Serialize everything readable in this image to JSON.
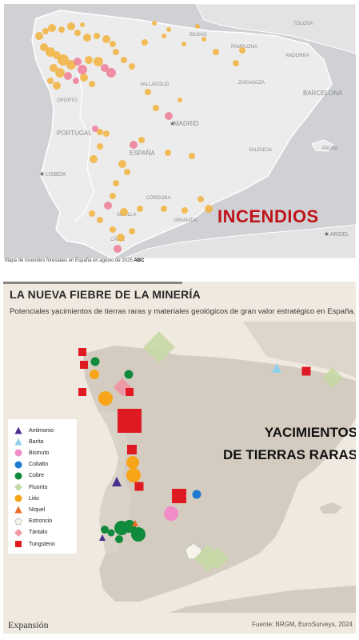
{
  "top_map": {
    "cities": {
      "tolosa": "TOLOSA",
      "bilbao": "BILBAO",
      "pamplona": "PAMPLONA",
      "andorra": "ANDORRA",
      "zaragoza": "ZARAGOZA",
      "barcelona": "BARCELONA",
      "valladolid": "VALLADOLID",
      "oporto": "OPORTO",
      "portugal": "PORTUGAL",
      "madrid": "MADRID",
      "espana": "ESPAÑA",
      "valencia": "VALENCIA",
      "palma": "PALMA",
      "lisboa": "LISBOA",
      "cordoba": "CÓRDOBA",
      "sevilla": "SEVILLA",
      "granada": "GRANADA",
      "cadiz": "CÁDIZ",
      "argel": "ARGEL"
    },
    "overlay_text": "INCENDIOS",
    "caption": "Mapa de incendios forestales en España en agosto de 2025",
    "caption_brand": "ABC",
    "colors": {
      "fire_yellow": "#f2b33d",
      "fire_pink": "#ef7c98",
      "overlay": "#c0141b"
    }
  },
  "bottom_map": {
    "title": "LA NUEVA FIEBRE DE LA MINERÍA",
    "subtitle": "Potenciales yacimientos de tierras raras y materiales geológicos de gran valor estratégico en España.",
    "overlay_line1": "YACIMIENTOS",
    "overlay_line2": "DE TIERRAS RARAS",
    "legend": [
      {
        "label": "Antimonio",
        "shape": "triangle",
        "color": "#4b2f8f"
      },
      {
        "label": "Barita",
        "shape": "triangle",
        "color": "#8fd0ec"
      },
      {
        "label": "Bismuto",
        "shape": "circle",
        "color": "#f08cc8"
      },
      {
        "label": "Cobalto",
        "shape": "circle",
        "color": "#1f7bd0"
      },
      {
        "label": "Cobre",
        "shape": "circle",
        "color": "#108a3c"
      },
      {
        "label": "Fluorito",
        "shape": "diamond",
        "color": "#c5d8a4"
      },
      {
        "label": "Litio",
        "shape": "circle",
        "color": "#f7a418"
      },
      {
        "label": "Níquel",
        "shape": "triangle",
        "color": "#ee6a22"
      },
      {
        "label": "Estroncio",
        "shape": "pentagon",
        "color": "#f6f3ea"
      },
      {
        "label": "Tántalo",
        "shape": "diamond",
        "color": "#ee9aa6"
      },
      {
        "label": "Tungsteno",
        "shape": "square",
        "color": "#e01a22"
      }
    ],
    "brand": "Expansión",
    "source": "Fuente: BRGM, EuroSurveys, 2024"
  }
}
